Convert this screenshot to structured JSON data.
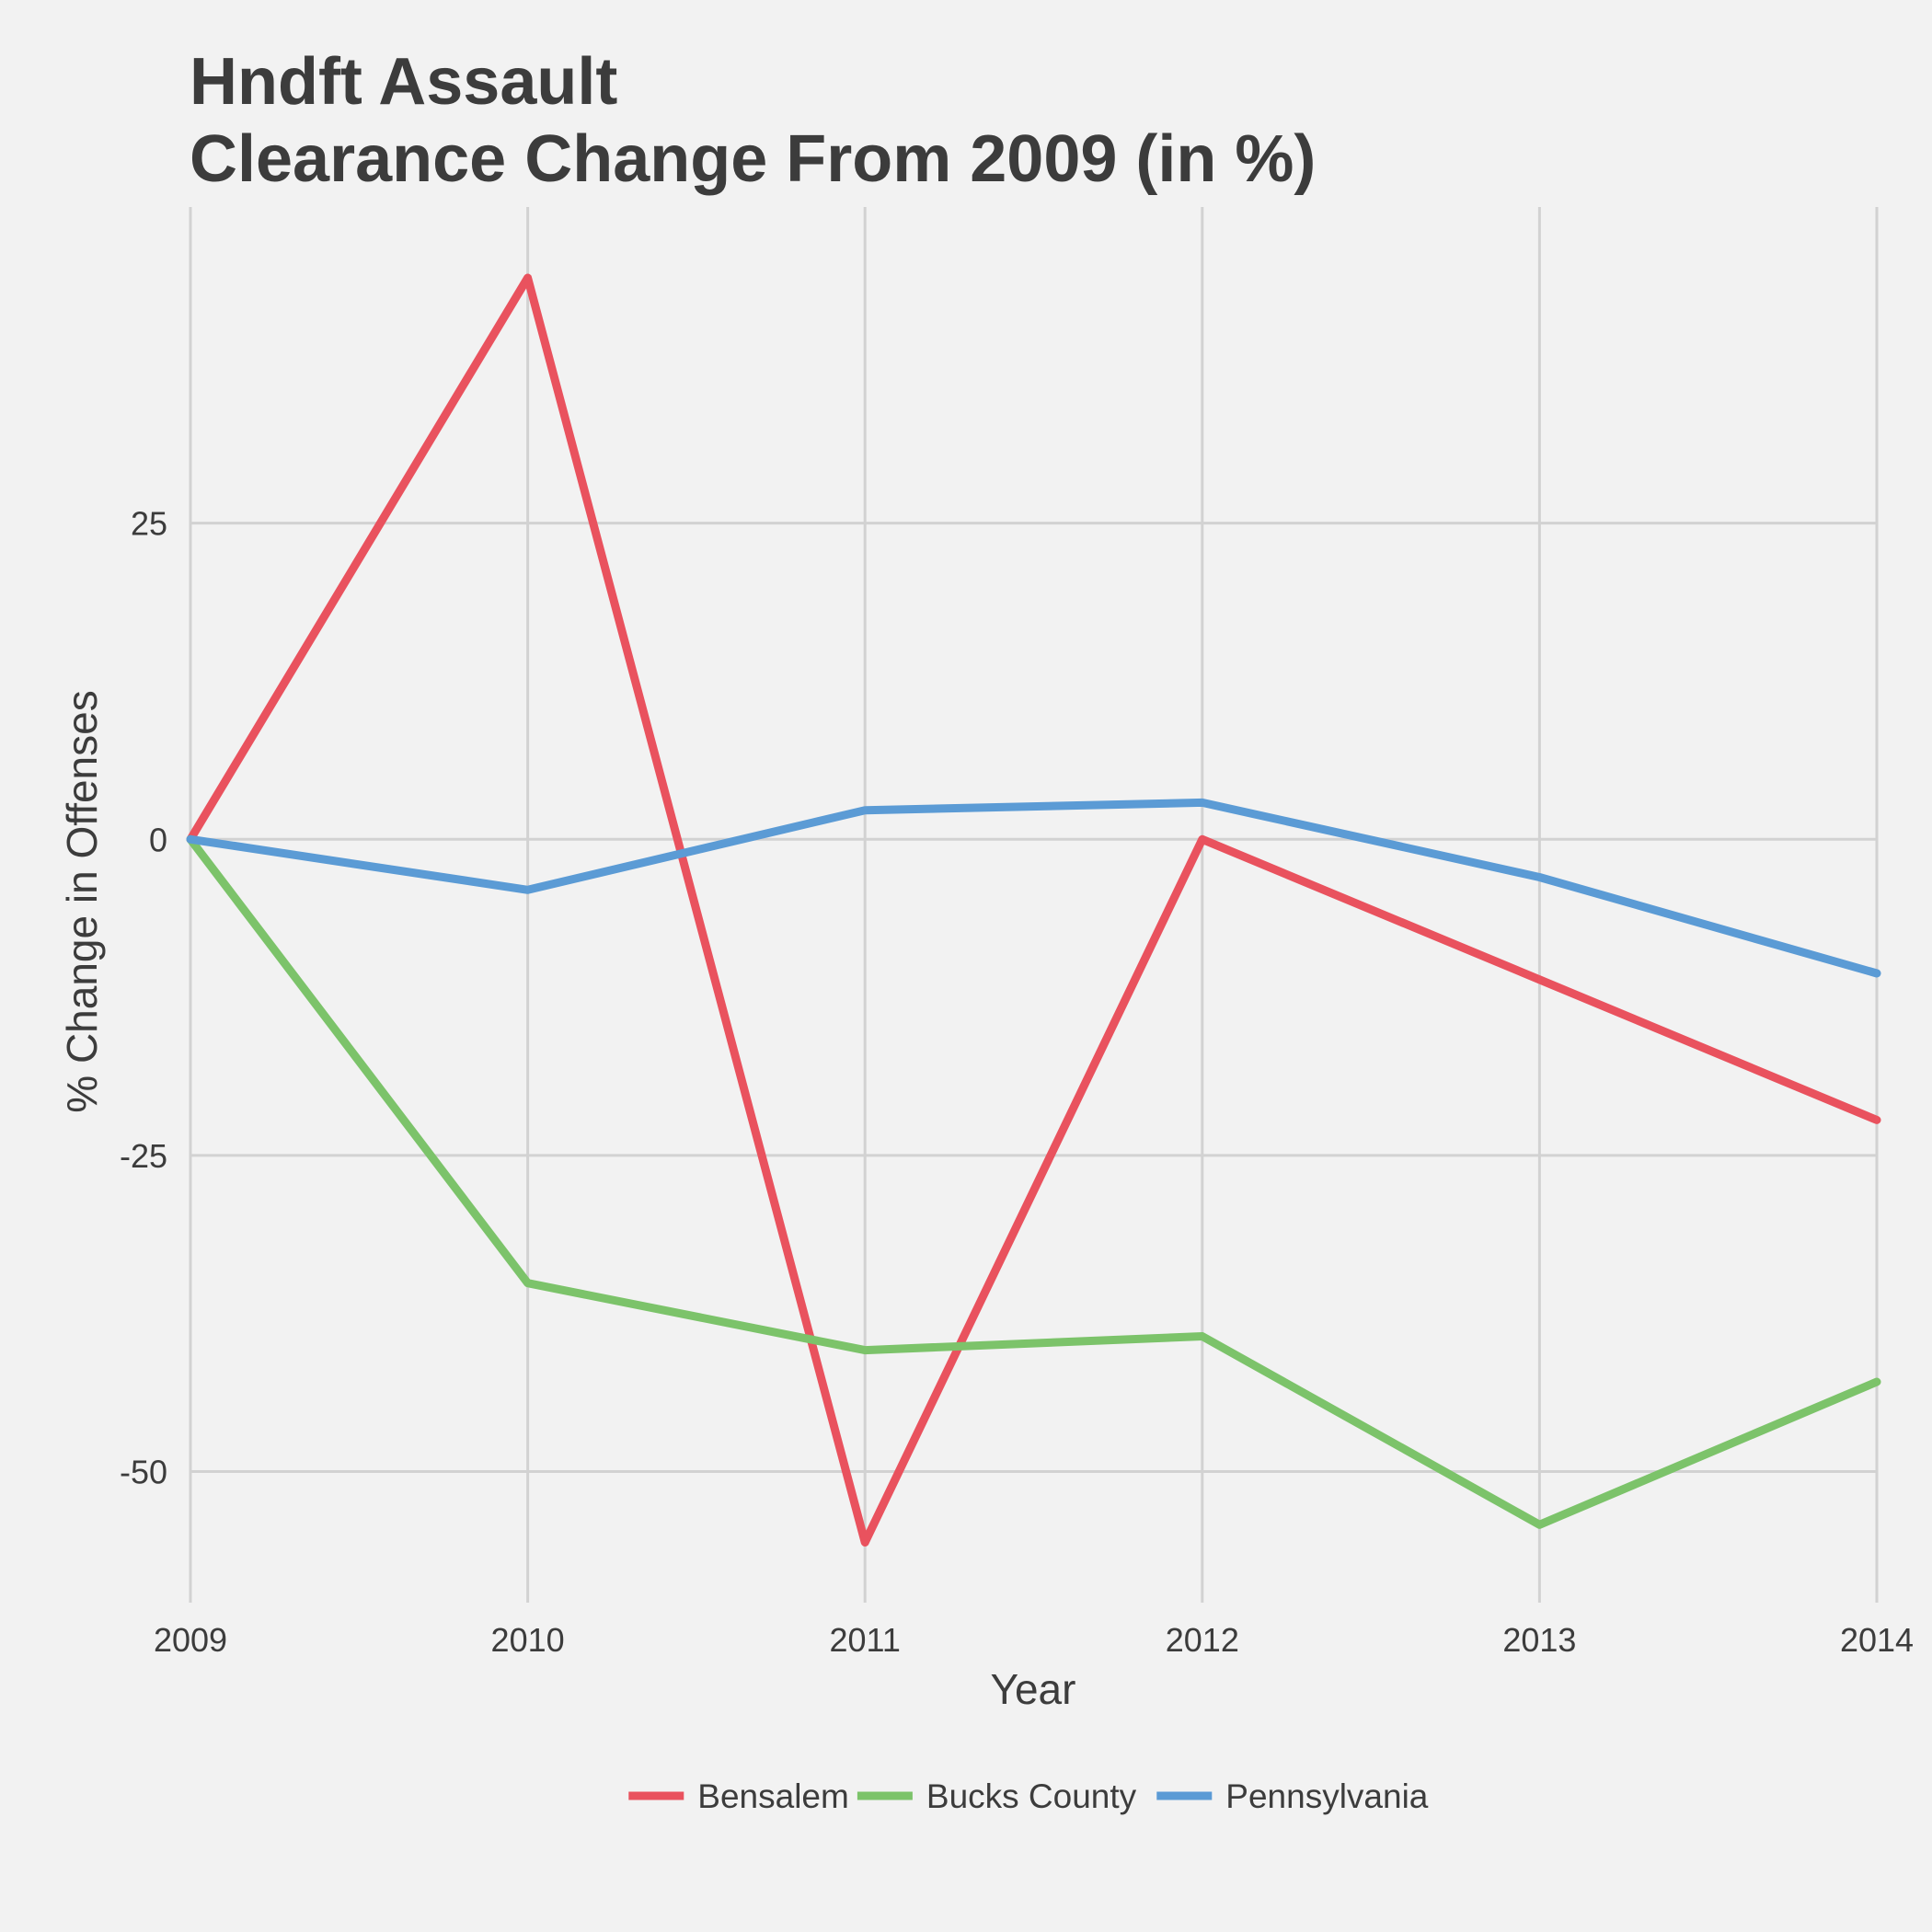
{
  "chart_data": {
    "type": "line",
    "title_lines": [
      "Hndft Assault",
      "Clearance Change From 2009 (in %)"
    ],
    "xlabel": "Year",
    "ylabel": "% Change in Offenses",
    "x": [
      2009,
      2010,
      2011,
      2012,
      2013,
      2014
    ],
    "x_tick_labels": [
      "2009",
      "2010",
      "2011",
      "2012",
      "2013",
      "2014"
    ],
    "y_ticks": [
      -50,
      -25,
      0,
      25
    ],
    "y_tick_labels": [
      "-50",
      "-25",
      "0",
      "25"
    ],
    "xlim": [
      2009,
      2014
    ],
    "ylim": [
      -60,
      50
    ],
    "grid": true,
    "legend_position": "bottom",
    "series": [
      {
        "name": "Bensalem",
        "color": "#e9525e",
        "values": [
          0,
          44.4,
          -55.6,
          0,
          -11.1,
          -22.2
        ]
      },
      {
        "name": "Bucks County",
        "color": "#7cc36a",
        "values": [
          0,
          -35.1,
          -40.4,
          -39.3,
          -54.2,
          -42.9
        ]
      },
      {
        "name": "Pennsylvania",
        "color": "#5b9bd5",
        "values": [
          0,
          -4.0,
          2.3,
          2.9,
          -3.0,
          -10.6
        ]
      }
    ]
  }
}
